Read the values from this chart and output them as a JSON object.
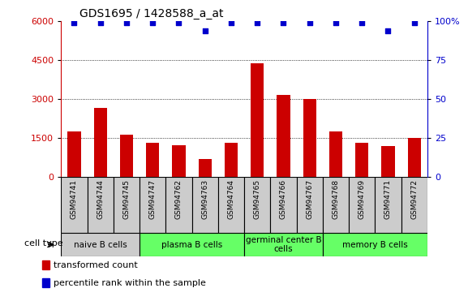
{
  "title": "GDS1695 / 1428588_a_at",
  "samples": [
    "GSM94741",
    "GSM94744",
    "GSM94745",
    "GSM94747",
    "GSM94762",
    "GSM94763",
    "GSM94764",
    "GSM94765",
    "GSM94766",
    "GSM94767",
    "GSM94768",
    "GSM94769",
    "GSM94771",
    "GSM94772"
  ],
  "bar_values": [
    1750,
    2650,
    1620,
    1320,
    1230,
    680,
    1320,
    4380,
    3150,
    3000,
    1750,
    1320,
    1180,
    1490
  ],
  "percentile_values": [
    99,
    99,
    99,
    99,
    99,
    94,
    99,
    99,
    99,
    99,
    99,
    99,
    94,
    99
  ],
  "bar_color": "#cc0000",
  "dot_color": "#0000cc",
  "ylim_left": [
    0,
    6000
  ],
  "ylim_right": [
    0,
    100
  ],
  "yticks_left": [
    0,
    1500,
    3000,
    4500,
    6000
  ],
  "yticks_right": [
    0,
    25,
    50,
    75,
    100
  ],
  "cell_groups": [
    {
      "label": "naive B cells",
      "start": 0,
      "end": 3,
      "color": "#cccccc"
    },
    {
      "label": "plasma B cells",
      "start": 3,
      "end": 7,
      "color": "#66ff66"
    },
    {
      "label": "germinal center B\ncells",
      "start": 7,
      "end": 10,
      "color": "#66ff66"
    },
    {
      "label": "memory B cells",
      "start": 10,
      "end": 14,
      "color": "#66ff66"
    }
  ],
  "cell_type_label": "cell type",
  "legend_bar_label": "transformed count",
  "legend_dot_label": "percentile rank within the sample",
  "bar_width": 0.5,
  "xtick_bg_color": "#cccccc",
  "plot_bg_color": "#ffffff"
}
